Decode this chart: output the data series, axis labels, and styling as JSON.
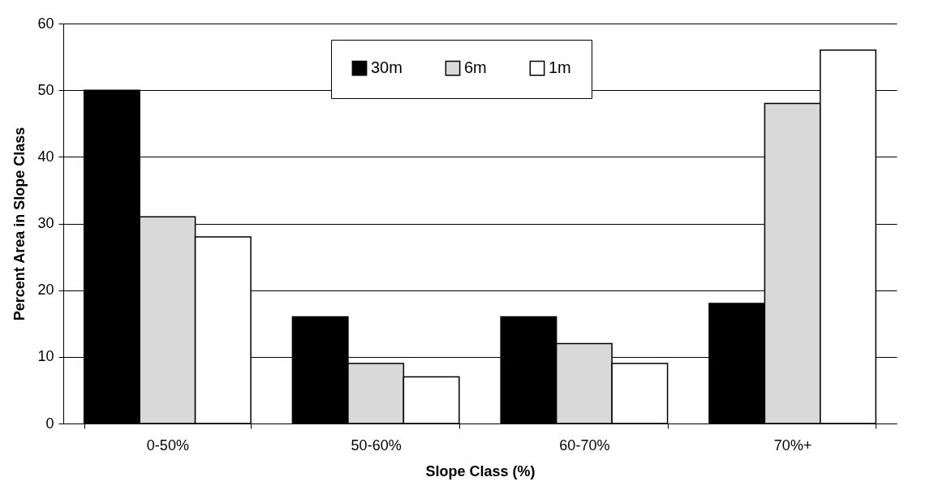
{
  "chart_data": {
    "type": "bar",
    "xlabel": "Slope Class (%)",
    "ylabel": "Percent Area in Slope Class",
    "categories": [
      "0-50%",
      "50-60%",
      "60-70%",
      "70%+"
    ],
    "series": [
      {
        "name": "30m",
        "color": "#000000",
        "values": [
          50,
          16,
          16,
          18
        ]
      },
      {
        "name": "6m",
        "color": "#d9d9d9",
        "values": [
          31,
          9,
          12,
          48
        ]
      },
      {
        "name": "1m",
        "color": "#ffffff",
        "values": [
          28,
          7,
          9,
          56
        ]
      }
    ],
    "ylim": [
      0,
      60
    ],
    "yticks": [
      0,
      10,
      20,
      30,
      40,
      50,
      60
    ],
    "grid": "y",
    "legend": "top"
  }
}
